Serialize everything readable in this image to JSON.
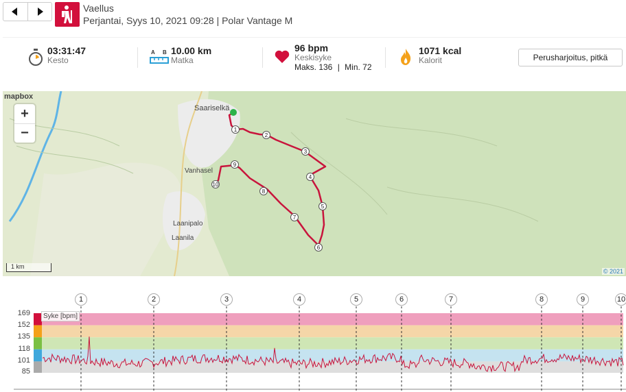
{
  "header": {
    "title": "Vaellus",
    "subtitle": "Perjantai, Syys 10, 2021 09:28 | Polar Vantage M",
    "prev_icon": "chevron-left-icon",
    "next_icon": "chevron-right-icon",
    "sport_icon": "hiking-icon",
    "sport_color": "#d2103c"
  },
  "summary": {
    "duration": {
      "value": "03:31:47",
      "label": "Kesto",
      "icon": "stopwatch-icon"
    },
    "distance": {
      "value": "10.00 km",
      "label": "Matka",
      "icon": "distance-ruler-icon"
    },
    "heart": {
      "value": "96 bpm",
      "label": "Keskisyke",
      "max": "Maks. 136",
      "min": "Min. 72",
      "icon": "heart-icon"
    },
    "calories": {
      "value": "1071 kcal",
      "label": "Kalorit",
      "icon": "flame-icon"
    },
    "type_button": "Perusharjoitus, pitkä"
  },
  "map": {
    "logo": "mapbox",
    "zoom_in": "+",
    "zoom_out": "−",
    "places": [
      "Saariselkä",
      "Vanhasel",
      "Laanipalo",
      "Laanila"
    ],
    "scale": "1 km",
    "attribution": "© 2021",
    "route_color": "#d2103c",
    "km_markers": [
      "1",
      "2",
      "3",
      "4",
      "5",
      "6",
      "7",
      "8",
      "9",
      "10"
    ]
  },
  "chart": {
    "legend": "Syke [bpm]",
    "y_ticks": [
      "169",
      "152",
      "135",
      "118",
      "101",
      "85"
    ],
    "km_markers": [
      "1",
      "2",
      "3",
      "4",
      "5",
      "6",
      "7",
      "8",
      "9",
      "10"
    ],
    "zones": [
      {
        "from": 152,
        "to": 169,
        "color": "#ef9fbd"
      },
      {
        "from": 135,
        "to": 152,
        "color": "#f5d6a8"
      },
      {
        "from": 118,
        "to": 135,
        "color": "#cfe6b5"
      },
      {
        "from": 101,
        "to": 118,
        "color": "#c5e3f0"
      },
      {
        "from": 85,
        "to": 101,
        "color": "#dedede"
      }
    ],
    "zone_tab_colors": [
      "#d2103c",
      "#f4a11a",
      "#7bc043",
      "#3fa8dc",
      "#aaaaaa"
    ],
    "line_color": "#c8143c"
  }
}
